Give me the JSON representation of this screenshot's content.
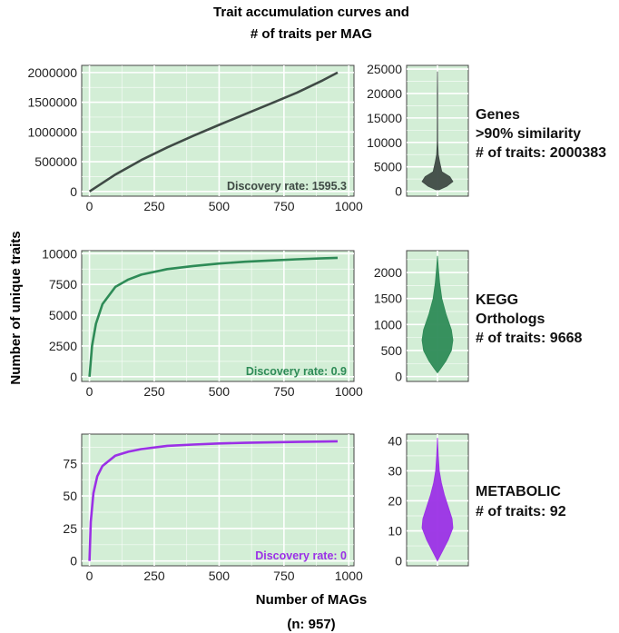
{
  "figure": {
    "title_line1": "Trait accumulation curves and",
    "title_line2": "# of traits per MAG",
    "ylabel": "Number of unique traits",
    "xlabel_line1": "Number of MAGs",
    "xlabel_line2": "(n: 957)"
  },
  "colors": {
    "panel_bg": "#d3eed6",
    "grid": "#ffffff",
    "genes": "#3f4a45",
    "kegg": "#2e8b57",
    "metabolic": "#9b30e6"
  },
  "chart_data": [
    {
      "type": "line",
      "id": "genes-curve",
      "x_range": [
        0,
        957
      ],
      "ylim": [
        0,
        2000383
      ],
      "xticks": [
        0,
        250,
        500,
        750,
        1000
      ],
      "yticks": [
        0,
        500000,
        1000000,
        1500000,
        2000000
      ],
      "xtick_labels": [
        "0",
        "250",
        "500",
        "750",
        "1000"
      ],
      "ytick_labels": [
        "0",
        "500000",
        "1000000",
        "1500000",
        "2000000"
      ],
      "series": [
        {
          "x": [
            0,
            100,
            200,
            300,
            400,
            500,
            600,
            700,
            800,
            900,
            957
          ],
          "y": [
            0,
            284000,
            528000,
            740000,
            935000,
            1120000,
            1300000,
            1480000,
            1660000,
            1870000,
            2000383
          ]
        }
      ],
      "annotation": "Discovery rate:  1595.3"
    },
    {
      "type": "line",
      "id": "kegg-curve",
      "x_range": [
        0,
        957
      ],
      "ylim": [
        0,
        9668
      ],
      "xticks": [
        0,
        250,
        500,
        750,
        1000
      ],
      "yticks": [
        0,
        2500,
        5000,
        7500,
        10000
      ],
      "xtick_labels": [
        "0",
        "250",
        "500",
        "750",
        "1000"
      ],
      "ytick_labels": [
        "0",
        "2500",
        "5000",
        "7500",
        "10000"
      ],
      "series": [
        {
          "x": [
            0,
            10,
            25,
            50,
            100,
            150,
            200,
            300,
            400,
            500,
            600,
            700,
            800,
            900,
            957
          ],
          "y": [
            0,
            2500,
            4300,
            5900,
            7300,
            7900,
            8300,
            8750,
            9000,
            9200,
            9350,
            9450,
            9550,
            9630,
            9668
          ]
        }
      ],
      "annotation": "Discovery rate:  0.9"
    },
    {
      "type": "line",
      "id": "metabolic-curve",
      "x_range": [
        0,
        957
      ],
      "ylim": [
        0,
        92
      ],
      "xticks": [
        0,
        250,
        500,
        750,
        1000
      ],
      "yticks": [
        0,
        25,
        50,
        75
      ],
      "xtick_labels": [
        "0",
        "250",
        "500",
        "750",
        "1000"
      ],
      "ytick_labels": [
        "0",
        "25",
        "50",
        "75"
      ],
      "series": [
        {
          "x": [
            0,
            5,
            15,
            30,
            50,
            100,
            150,
            200,
            300,
            400,
            500,
            600,
            700,
            800,
            900,
            957
          ],
          "y": [
            0,
            30,
            52,
            65,
            73,
            81,
            84,
            86,
            88.5,
            89.5,
            90.3,
            90.8,
            91.2,
            91.5,
            91.8,
            92
          ]
        }
      ],
      "annotation": "Discovery rate:  0"
    },
    {
      "type": "violin",
      "id": "genes-violin",
      "ylim": [
        0,
        25000
      ],
      "yticks": [
        0,
        5000,
        10000,
        15000,
        20000,
        25000
      ],
      "ytick_labels": [
        "0",
        "5000",
        "10000",
        "15000",
        "20000",
        "25000"
      ],
      "profile": [
        [
          300,
          0.1
        ],
        [
          1000,
          0.6
        ],
        [
          2000,
          1.0
        ],
        [
          3000,
          0.8
        ],
        [
          4000,
          0.28
        ],
        [
          6000,
          0.14
        ],
        [
          7500,
          0.05
        ],
        [
          10000,
          0.02
        ],
        [
          15000,
          0.012
        ],
        [
          20000,
          0.01
        ],
        [
          24500,
          0.0
        ]
      ]
    },
    {
      "type": "violin",
      "id": "kegg-violin",
      "ylim": [
        0,
        2350
      ],
      "yticks": [
        0,
        500,
        1000,
        1500,
        2000
      ],
      "ytick_labels": [
        "0",
        "500",
        "1000",
        "1500",
        "2000"
      ],
      "profile": [
        [
          70,
          0.0
        ],
        [
          150,
          0.2
        ],
        [
          300,
          0.55
        ],
        [
          500,
          0.9
        ],
        [
          700,
          1.0
        ],
        [
          900,
          0.9
        ],
        [
          1200,
          0.55
        ],
        [
          1500,
          0.28
        ],
        [
          1800,
          0.14
        ],
        [
          2100,
          0.05
        ],
        [
          2320,
          0.0
        ]
      ]
    },
    {
      "type": "violin",
      "id": "metabolic-violin",
      "ylim": [
        0,
        41
      ],
      "yticks": [
        0,
        10,
        20,
        30,
        40
      ],
      "ytick_labels": [
        "0",
        "10",
        "20",
        "30",
        "40"
      ],
      "profile": [
        [
          0,
          0.0
        ],
        [
          3,
          0.3
        ],
        [
          7,
          0.7
        ],
        [
          11,
          1.0
        ],
        [
          14,
          0.95
        ],
        [
          18,
          0.7
        ],
        [
          22,
          0.45
        ],
        [
          26,
          0.25
        ],
        [
          30,
          0.12
        ],
        [
          35,
          0.05
        ],
        [
          41,
          0.0
        ]
      ]
    }
  ],
  "labels": {
    "genes": [
      "Genes",
      ">90% similarity",
      "# of traits: 2000383"
    ],
    "kegg": [
      "KEGG",
      "Orthologs",
      "# of traits: 9668"
    ],
    "metabolic": [
      "METABOLIC",
      "# of traits: 92"
    ]
  }
}
